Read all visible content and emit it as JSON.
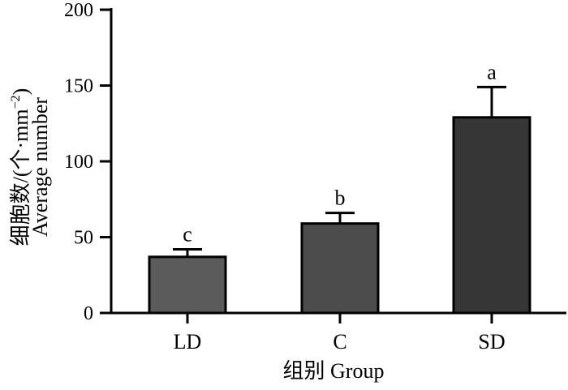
{
  "chart_data": {
    "type": "bar",
    "categories": [
      "LD",
      "C",
      "SD"
    ],
    "values": [
      37,
      59,
      129
    ],
    "errors": [
      5,
      7,
      20
    ],
    "significance": [
      "c",
      "b",
      "a"
    ],
    "colors": [
      "#5b5b5b",
      "#4c4c4c",
      "#363636"
    ],
    "xlabel": "组别 Group",
    "ylabel": {
      "line1_main": "细胞数/(个·mm",
      "line1_sup": "−2",
      "line1_end": ")",
      "line2": "Average number"
    },
    "ylim": [
      0,
      200
    ],
    "yticks": [
      0,
      50,
      100,
      150,
      200
    ],
    "grid": false,
    "legend": "none"
  }
}
